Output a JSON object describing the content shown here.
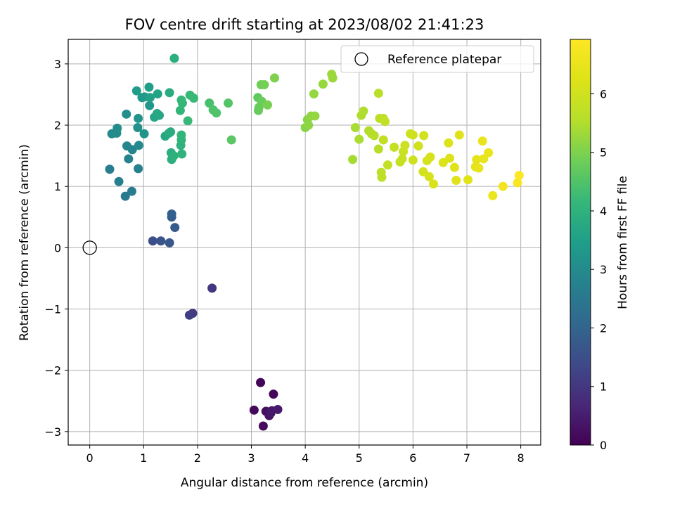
{
  "chart_data": {
    "type": "scatter",
    "title": "FOV centre drift starting at 2023/08/02 21:41:23",
    "xlabel": "Angular distance from reference (arcmin)",
    "ylabel": "Rotation from reference (arcmin)",
    "xlim": [
      -0.4,
      8.37
    ],
    "ylim": [
      -3.22,
      3.4
    ],
    "xticks": [
      0,
      1,
      2,
      3,
      4,
      5,
      6,
      7,
      8
    ],
    "yticks": [
      -3,
      -2,
      -1,
      0,
      1,
      2,
      3
    ],
    "xtick_labels": [
      "0",
      "1",
      "2",
      "3",
      "4",
      "5",
      "6",
      "7",
      "8"
    ],
    "ytick_labels": [
      "−3",
      "−2",
      "−1",
      "0",
      "1",
      "2",
      "3"
    ],
    "grid": true,
    "legend": {
      "position": "top-right",
      "entries": [
        {
          "label": "Reference platepar",
          "marker": "open-circle",
          "color": "#000000"
        }
      ]
    },
    "reference_point": {
      "x": 0,
      "y": 0
    },
    "colorbar": {
      "label": "Hours from first FF file",
      "range": [
        0,
        6.93
      ],
      "ticks": [
        0,
        1,
        2,
        3,
        4,
        5,
        6
      ],
      "tick_labels": [
        "0",
        "1",
        "2",
        "3",
        "4",
        "5",
        "6"
      ],
      "colormap": "viridis"
    },
    "points": [
      [
        3.17,
        -2.2,
        0.05
      ],
      [
        3.41,
        -2.39,
        0.1
      ],
      [
        3.05,
        -2.65,
        0.15
      ],
      [
        3.22,
        -2.91,
        0.2
      ],
      [
        3.27,
        -2.67,
        0.25
      ],
      [
        3.33,
        -2.74,
        0.3
      ],
      [
        3.38,
        -2.66,
        0.35
      ],
      [
        3.36,
        -2.7,
        0.4
      ],
      [
        3.49,
        -2.64,
        0.45
      ],
      [
        2.27,
        -0.66,
        1.0
      ],
      [
        1.91,
        -1.07,
        1.1
      ],
      [
        1.85,
        -1.1,
        1.15
      ],
      [
        1.17,
        0.11,
        1.5
      ],
      [
        1.32,
        0.11,
        1.6
      ],
      [
        1.48,
        0.08,
        1.7
      ],
      [
        1.58,
        0.33,
        1.8
      ],
      [
        1.52,
        0.5,
        1.85
      ],
      [
        1.52,
        0.55,
        1.9
      ],
      [
        0.66,
        0.84,
        2.55
      ],
      [
        0.78,
        0.92,
        2.6
      ],
      [
        0.37,
        1.28,
        2.65
      ],
      [
        0.54,
        1.08,
        2.7
      ],
      [
        0.9,
        1.29,
        2.75
      ],
      [
        0.72,
        1.45,
        2.8
      ],
      [
        0.79,
        1.6,
        2.85
      ],
      [
        0.69,
        1.66,
        2.9
      ],
      [
        0.91,
        1.67,
        2.95
      ],
      [
        0.41,
        1.86,
        3.0
      ],
      [
        0.5,
        1.87,
        3.0
      ],
      [
        0.51,
        1.95,
        3.05
      ],
      [
        0.68,
        2.18,
        3.1
      ],
      [
        0.89,
        1.96,
        3.15
      ],
      [
        1.01,
        1.86,
        3.2
      ],
      [
        0.9,
        2.11,
        3.25
      ],
      [
        1.11,
        2.32,
        3.3
      ],
      [
        0.97,
        2.45,
        3.35
      ],
      [
        1.02,
        2.46,
        3.4
      ],
      [
        0.87,
        2.56,
        3.45
      ],
      [
        1.1,
        2.62,
        3.5
      ],
      [
        1.12,
        2.45,
        3.55
      ],
      [
        1.26,
        2.51,
        3.6
      ],
      [
        1.2,
        2.13,
        3.65
      ],
      [
        1.29,
        2.16,
        3.7
      ],
      [
        1.25,
        2.19,
        3.72
      ],
      [
        1.4,
        1.82,
        3.75
      ],
      [
        1.47,
        1.87,
        3.8
      ],
      [
        1.48,
        2.53,
        3.82
      ],
      [
        1.5,
        1.89,
        3.85
      ],
      [
        1.51,
        1.55,
        3.9
      ],
      [
        1.52,
        1.44,
        3.92
      ],
      [
        1.57,
        3.09,
        3.95
      ],
      [
        1.56,
        1.5,
        3.98
      ],
      [
        1.69,
        1.67,
        4.0
      ],
      [
        1.71,
        1.53,
        4.02
      ],
      [
        1.7,
        1.76,
        4.05
      ],
      [
        1.7,
        1.84,
        4.08
      ],
      [
        1.68,
        2.24,
        4.1
      ],
      [
        1.72,
        2.36,
        4.12
      ],
      [
        1.7,
        2.41,
        4.15
      ],
      [
        1.82,
        2.07,
        4.18
      ],
      [
        1.86,
        2.49,
        4.2
      ],
      [
        1.93,
        2.44,
        4.22
      ],
      [
        2.22,
        2.36,
        4.4
      ],
      [
        2.29,
        2.25,
        4.45
      ],
      [
        2.35,
        2.2,
        4.48
      ],
      [
        2.57,
        2.36,
        4.55
      ],
      [
        2.63,
        1.76,
        4.62
      ],
      [
        3.12,
        2.45,
        4.7
      ],
      [
        3.13,
        2.24,
        4.75
      ],
      [
        3.14,
        2.29,
        4.78
      ],
      [
        3.19,
        2.39,
        4.8
      ],
      [
        3.18,
        2.66,
        4.85
      ],
      [
        3.24,
        2.66,
        4.9
      ],
      [
        3.3,
        2.33,
        4.95
      ],
      [
        3.43,
        2.77,
        5.0
      ],
      [
        4.0,
        1.96,
        5.1
      ],
      [
        4.04,
        2.09,
        5.12
      ],
      [
        4.06,
        2.0,
        5.15
      ],
      [
        4.11,
        2.15,
        5.18
      ],
      [
        4.18,
        2.15,
        5.2
      ],
      [
        4.16,
        2.51,
        5.22
      ],
      [
        4.33,
        2.67,
        5.25
      ],
      [
        4.49,
        2.83,
        5.28
      ],
      [
        4.51,
        2.77,
        5.3
      ],
      [
        4.88,
        1.44,
        5.4
      ],
      [
        4.93,
        1.96,
        5.42
      ],
      [
        5.0,
        1.77,
        5.45
      ],
      [
        5.04,
        2.16,
        5.48
      ],
      [
        5.08,
        2.23,
        5.5
      ],
      [
        5.18,
        1.91,
        5.52
      ],
      [
        5.23,
        1.86,
        5.55
      ],
      [
        5.28,
        1.83,
        5.58
      ],
      [
        5.36,
        1.61,
        5.6
      ],
      [
        5.36,
        2.52,
        5.62
      ],
      [
        5.38,
        2.11,
        5.65
      ],
      [
        5.41,
        1.23,
        5.68
      ],
      [
        5.42,
        1.15,
        5.7
      ],
      [
        5.45,
        2.11,
        5.72
      ],
      [
        5.45,
        1.76,
        5.75
      ],
      [
        5.48,
        2.06,
        5.78
      ],
      [
        5.53,
        1.35,
        5.8
      ],
      [
        5.65,
        1.64,
        5.82
      ],
      [
        5.76,
        1.4,
        5.85
      ],
      [
        5.8,
        1.45,
        5.88
      ],
      [
        5.82,
        1.57,
        5.9
      ],
      [
        5.85,
        1.67,
        5.92
      ],
      [
        5.95,
        1.86,
        5.95
      ],
      [
        6.0,
        1.43,
        5.98
      ],
      [
        6.0,
        1.84,
        6.0
      ],
      [
        6.1,
        1.66,
        6.02
      ],
      [
        6.2,
        1.83,
        6.05
      ],
      [
        6.19,
        1.24,
        6.08
      ],
      [
        6.26,
        1.42,
        6.1
      ],
      [
        6.32,
        1.48,
        6.12
      ],
      [
        6.3,
        1.16,
        6.15
      ],
      [
        6.38,
        1.04,
        6.18
      ],
      [
        6.56,
        1.39,
        6.2
      ],
      [
        6.66,
        1.71,
        6.22
      ],
      [
        6.68,
        1.46,
        6.25
      ],
      [
        6.77,
        1.31,
        6.28
      ],
      [
        6.8,
        1.1,
        6.3
      ],
      [
        6.86,
        1.84,
        6.32
      ],
      [
        7.02,
        1.11,
        6.35
      ],
      [
        7.16,
        1.32,
        6.4
      ],
      [
        7.18,
        1.44,
        6.42
      ],
      [
        7.22,
        1.3,
        6.45
      ],
      [
        7.29,
        1.74,
        6.48
      ],
      [
        7.31,
        1.45,
        6.5
      ],
      [
        7.4,
        1.55,
        6.52
      ],
      [
        7.48,
        0.85,
        6.55
      ],
      [
        7.67,
        1.0,
        6.65
      ],
      [
        7.94,
        1.06,
        6.8
      ],
      [
        7.97,
        1.18,
        6.9
      ]
    ]
  }
}
